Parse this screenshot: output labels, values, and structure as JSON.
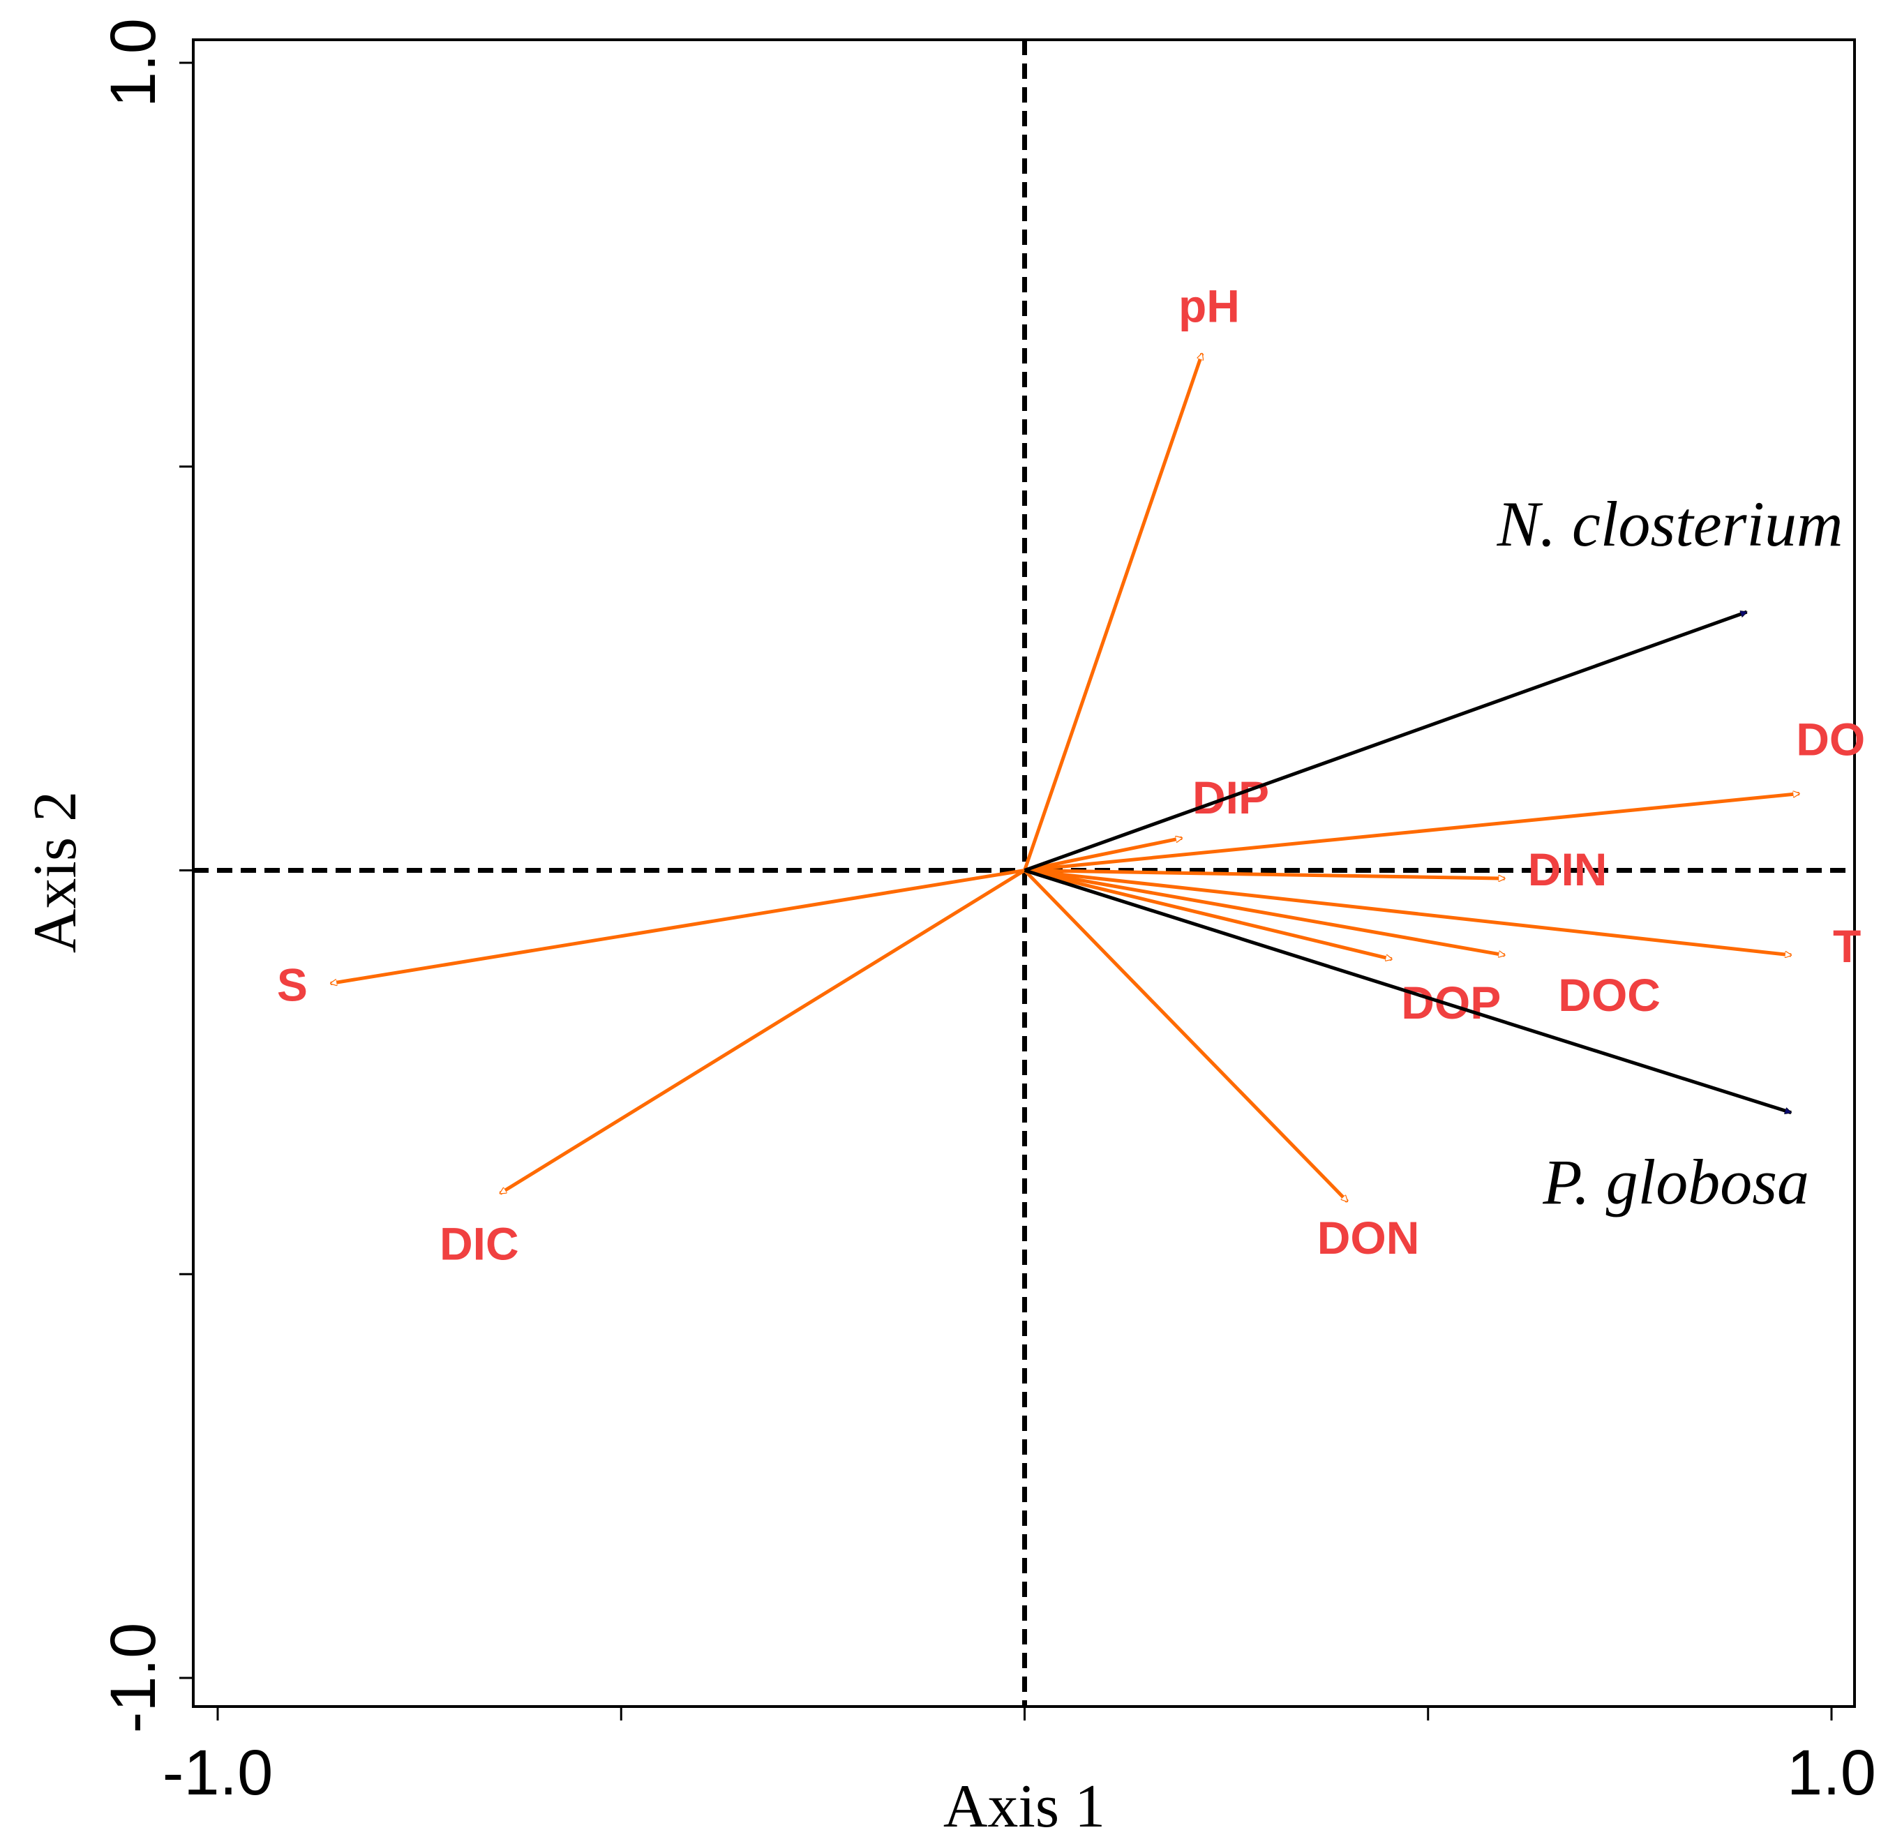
{
  "chart_data": {
    "type": "biplot",
    "x_axis": {
      "label": "Axis 1",
      "range": [
        -1.0,
        1.0
      ],
      "tick_labels": [
        "-1.0",
        "1.0"
      ],
      "minor_ticks": [
        -1.0,
        -0.5,
        0.0,
        0.5,
        1.0
      ]
    },
    "y_axis": {
      "label": "Axis 2",
      "range": [
        -1.0,
        1.0
      ],
      "tick_labels": [
        "1.0",
        "-1.0"
      ],
      "minor_ticks": [
        -1.0,
        -0.5,
        0.0,
        0.5,
        1.0
      ]
    },
    "env_color": "#ff6a00",
    "env_label_color": "#f04040",
    "species_color": "#000000",
    "species_head_color": "#0a0a6e",
    "environmental_vectors": [
      {
        "name": "pH",
        "x": 0.22,
        "y": 0.64
      },
      {
        "name": "DIP",
        "x": 0.195,
        "y": 0.04
      },
      {
        "name": "DO",
        "x": 0.96,
        "y": 0.095
      },
      {
        "name": "DIN",
        "x": 0.595,
        "y": -0.01
      },
      {
        "name": "T",
        "x": 0.95,
        "y": -0.105
      },
      {
        "name": "DOP",
        "x": 0.455,
        "y": -0.11
      },
      {
        "name": "DOC",
        "x": 0.595,
        "y": -0.105
      },
      {
        "name": "DON",
        "x": 0.4,
        "y": -0.41
      },
      {
        "name": "S",
        "x": -0.86,
        "y": -0.14
      },
      {
        "name": "DIC",
        "x": -0.65,
        "y": -0.4
      }
    ],
    "species_vectors": [
      {
        "name": "N. closterium",
        "x": 0.895,
        "y": 0.32
      },
      {
        "name": "P. globosa",
        "x": 0.95,
        "y": -0.3
      }
    ]
  }
}
